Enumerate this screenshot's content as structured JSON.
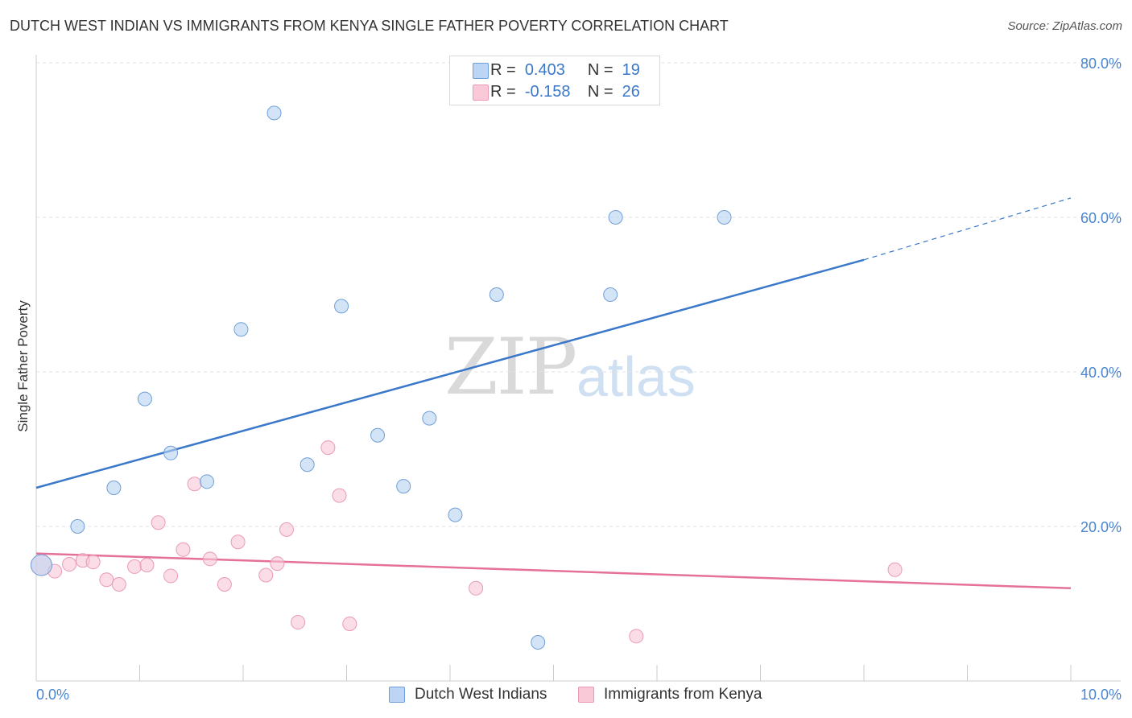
{
  "header": {
    "title": "DUTCH WEST INDIAN VS IMMIGRANTS FROM KENYA SINGLE FATHER POVERTY CORRELATION CHART",
    "source": "Source: ZipAtlas.com"
  },
  "watermark": {
    "zip": "ZIP",
    "atlas": "atlas"
  },
  "legend_top": {
    "rows": [
      {
        "r_label": "R =",
        "r_value": "0.403",
        "n_label": "N =",
        "n_value": "19",
        "color": "#a9c8f0"
      },
      {
        "r_label": "R =",
        "r_value": "-0.158",
        "n_label": "N =",
        "n_value": "26",
        "color": "#f7bccf"
      }
    ]
  },
  "chart_data": {
    "type": "scatter",
    "title": "DUTCH WEST INDIAN VS IMMIGRANTS FROM KENYA SINGLE FATHER POVERTY CORRELATION CHART",
    "xlabel": "",
    "ylabel": "Single Father Poverty",
    "xlim": [
      0,
      10
    ],
    "ylim": [
      0,
      80
    ],
    "x_tick_labels": [
      "0.0%",
      "10.0%"
    ],
    "y_tick_labels": [
      "20.0%",
      "40.0%",
      "60.0%",
      "80.0%"
    ],
    "y_ticks": [
      20,
      40,
      60,
      80
    ],
    "x_minor_ticks": [
      0,
      1,
      2,
      3,
      4,
      5,
      6,
      7,
      8,
      9,
      10
    ],
    "grid": true,
    "legend_position": "bottom",
    "series": [
      {
        "name": "Dutch West Indians",
        "color": "#3a78c9",
        "fill": "#b8d2f2",
        "points": [
          [
            0.05,
            15.0
          ],
          [
            0.4,
            20.0
          ],
          [
            0.75,
            25.0
          ],
          [
            1.05,
            36.5
          ],
          [
            1.3,
            29.5
          ],
          [
            1.65,
            25.8
          ],
          [
            1.98,
            45.5
          ],
          [
            2.3,
            73.5
          ],
          [
            2.62,
            28.0
          ],
          [
            2.95,
            48.5
          ],
          [
            3.3,
            31.8
          ],
          [
            3.55,
            25.2
          ],
          [
            3.8,
            34.0
          ],
          [
            4.05,
            21.5
          ],
          [
            4.45,
            50.0
          ],
          [
            4.85,
            5.0
          ],
          [
            5.55,
            50.0
          ],
          [
            5.6,
            60.0
          ],
          [
            6.65,
            60.0
          ]
        ],
        "trend": {
          "x0": 0,
          "y0": 25.0,
          "x1": 8.0,
          "y1": 54.5,
          "dash_to_x": 10.0,
          "dash_to_y": 62.5
        }
      },
      {
        "name": "Immigrants from Kenya",
        "color": "#e5709a",
        "fill": "#f7c6d6",
        "points": [
          [
            0.05,
            15.0
          ],
          [
            0.18,
            14.2
          ],
          [
            0.32,
            15.1
          ],
          [
            0.45,
            15.6
          ],
          [
            0.55,
            15.4
          ],
          [
            0.68,
            13.1
          ],
          [
            0.8,
            12.5
          ],
          [
            0.95,
            14.8
          ],
          [
            1.07,
            15.0
          ],
          [
            1.18,
            20.5
          ],
          [
            1.3,
            13.6
          ],
          [
            1.42,
            17.0
          ],
          [
            1.53,
            25.5
          ],
          [
            1.68,
            15.8
          ],
          [
            1.82,
            12.5
          ],
          [
            1.95,
            18.0
          ],
          [
            2.22,
            13.7
          ],
          [
            2.33,
            15.2
          ],
          [
            2.42,
            19.6
          ],
          [
            2.53,
            7.6
          ],
          [
            2.82,
            30.2
          ],
          [
            2.93,
            24.0
          ],
          [
            3.03,
            7.4
          ],
          [
            4.25,
            12.0
          ],
          [
            5.8,
            5.8
          ],
          [
            8.3,
            14.4
          ]
        ],
        "trend": {
          "x0": 0,
          "y0": 16.5,
          "x1": 10.0,
          "y1": 12.0
        }
      }
    ]
  }
}
